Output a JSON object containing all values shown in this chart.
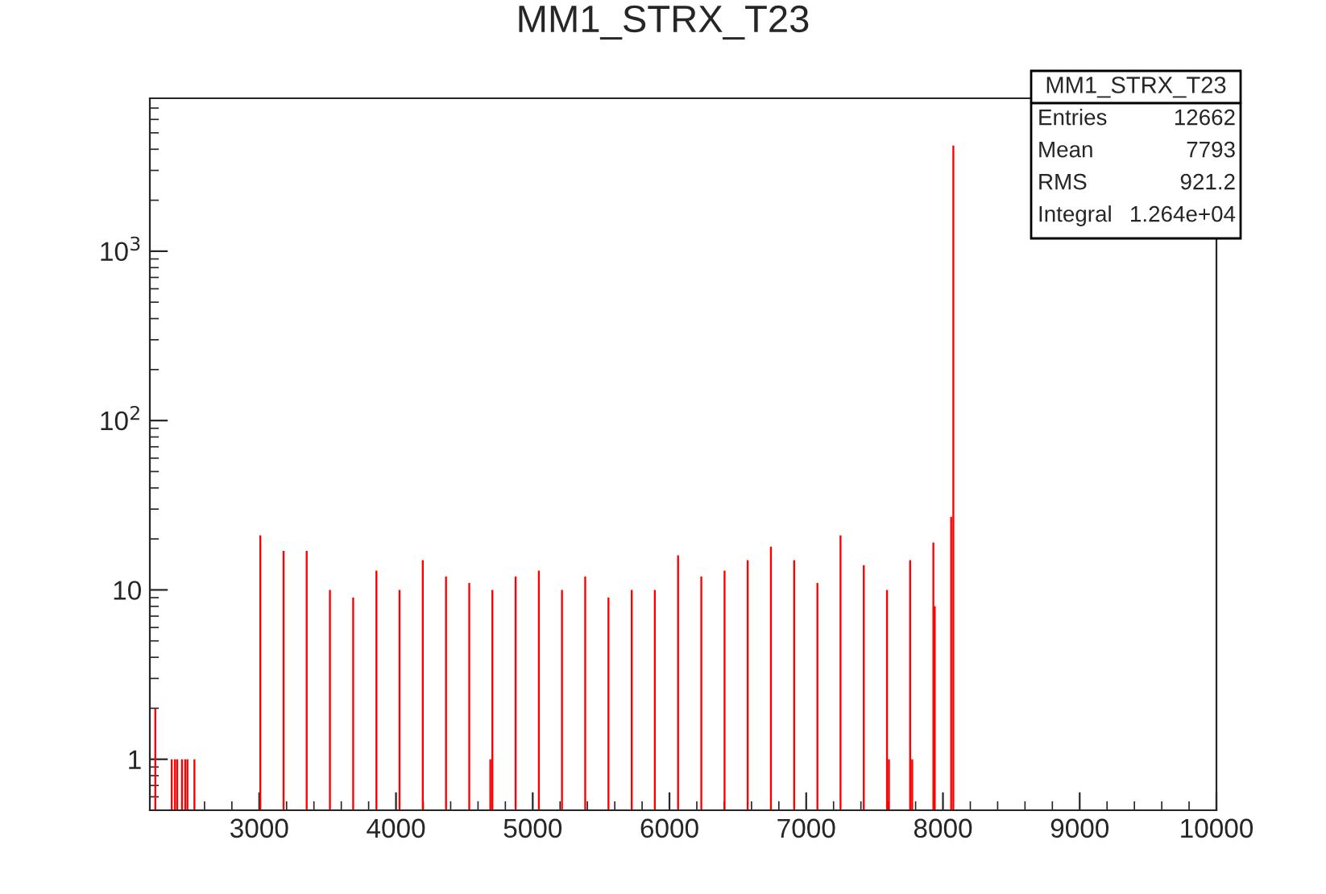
{
  "chart_data": {
    "type": "bar",
    "title": "MM1_STRX_T23",
    "x": [
      2240,
      2360,
      2384,
      2400,
      2435,
      2459,
      2475,
      2526,
      3008,
      3178,
      3347,
      3517,
      3687,
      3857,
      4026,
      4196,
      4366,
      4536,
      4690,
      4705,
      4875,
      5045,
      5214,
      5384,
      5554,
      5724,
      5893,
      6063,
      6233,
      6403,
      6572,
      6742,
      6912,
      7082,
      7251,
      7421,
      7591,
      7605,
      7760,
      7775,
      7930,
      7940,
      8060,
      8076
    ],
    "series": [
      {
        "color": "#ff0000",
        "values": [
          2,
          1,
          1,
          1,
          1,
          1,
          1,
          1,
          21,
          17,
          17,
          10,
          9,
          13,
          10,
          15,
          12,
          11,
          1,
          10,
          12,
          13,
          10,
          12,
          9,
          10,
          10,
          16,
          12,
          13,
          15,
          18,
          15,
          11,
          21,
          14,
          10,
          1,
          15,
          1,
          19,
          8,
          27,
          4200
        ]
      }
    ],
    "log": "y",
    "xlim": [
      2200,
      10000
    ],
    "ylim": [
      0.5,
      8000
    ],
    "xticks": [
      3000,
      4000,
      5000,
      6000,
      7000,
      8000,
      9000,
      10000
    ],
    "yticks": [
      1,
      10,
      {
        "value": 100,
        "label": "10$^{2}$"
      },
      {
        "value": 1000,
        "label": "10$^{3}$"
      }
    ],
    "grid": false,
    "legend": false,
    "annotations": [
      "MM1_STRX_T23",
      "Entries",
      "12662",
      "Mean",
      "7793",
      "RMS",
      "921.2",
      "Integral",
      "1.264e+04"
    ]
  }
}
